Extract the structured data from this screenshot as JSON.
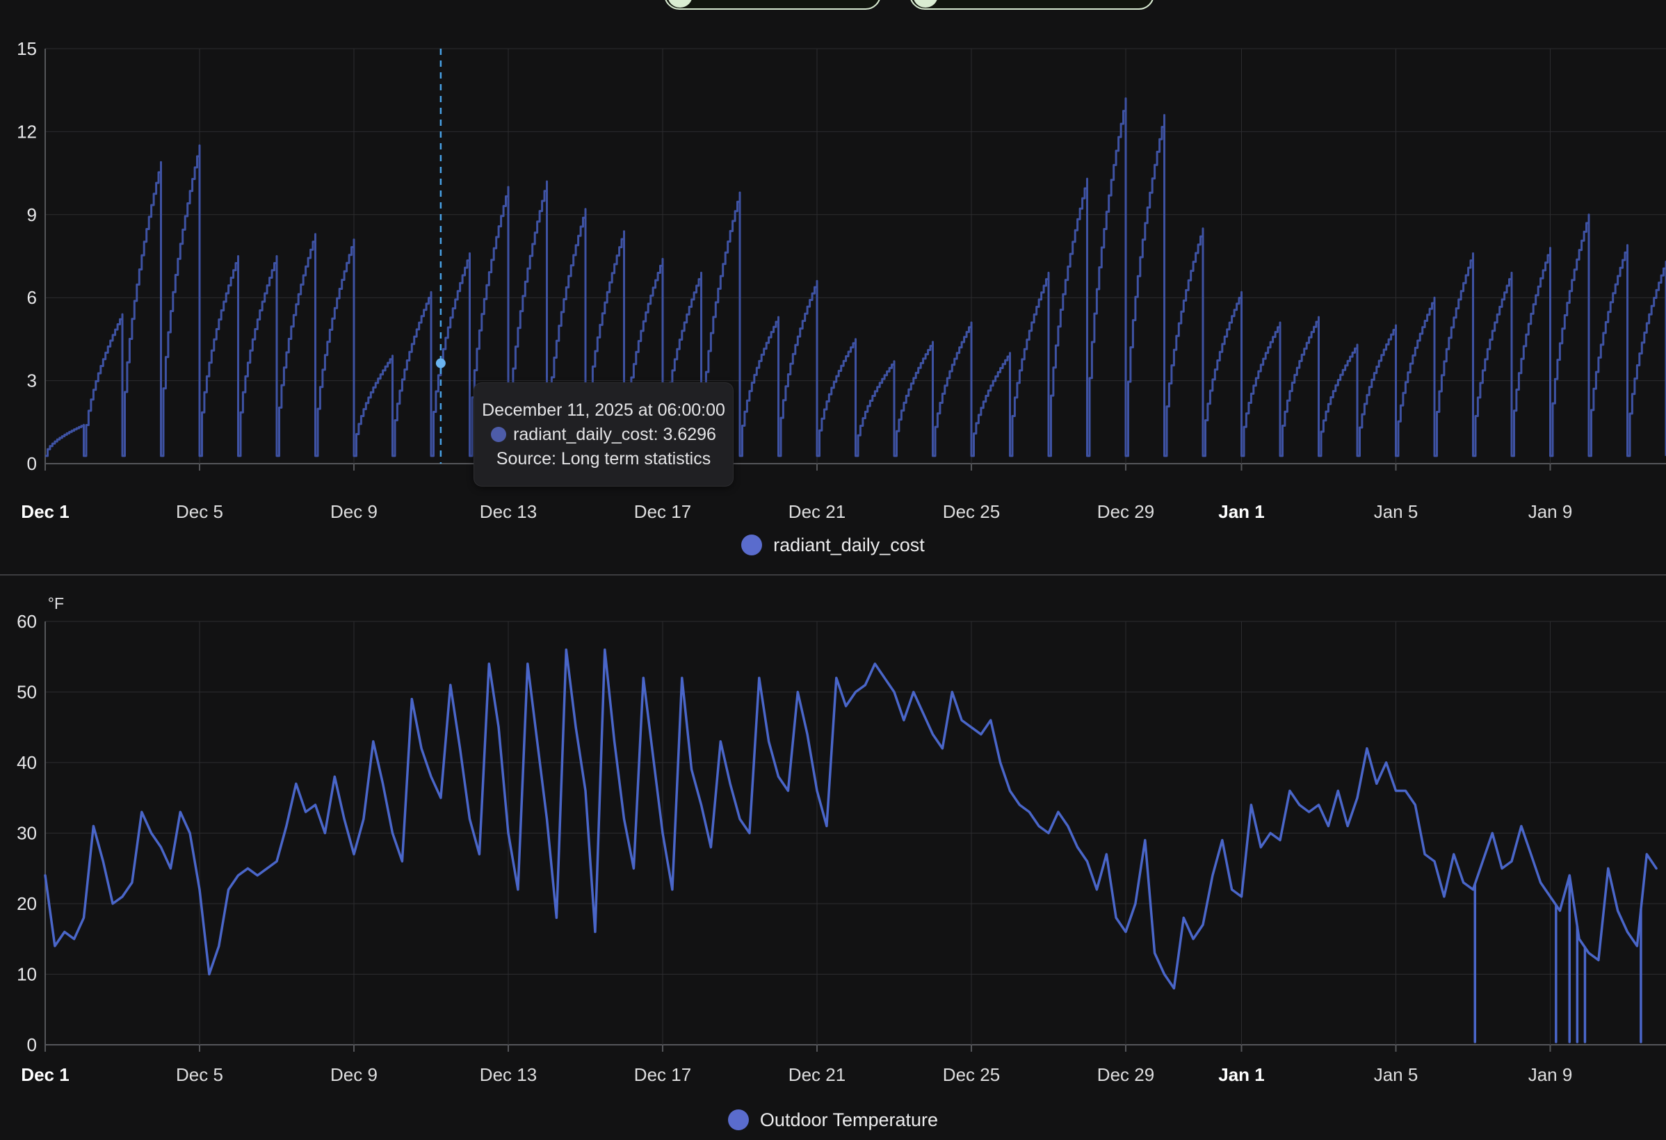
{
  "accent_green": "#d9ecd2",
  "tooltip": {
    "title": "December 11, 2025 at 06:00:00",
    "value_line": "radiant_daily_cost: 3.6296",
    "source_line": "Source: Long term statistics",
    "dot_color": "#4d5ca8"
  },
  "legend1": {
    "label": "radiant_daily_cost",
    "dot_color": "#5a6ccd"
  },
  "legend2": {
    "label": "Outdoor Temperature",
    "dot_color": "#5a6ccd"
  },
  "chart_data": [
    {
      "type": "line",
      "name": "radiant_daily_cost",
      "style": "daily sawtooth staircase, value accumulates each day then resets to ~0 at midnight",
      "color": "#3e52a3",
      "grid_color": "#2c2c2f",
      "axis_color": "#55565a",
      "ylim": [
        0,
        15
      ],
      "y_ticks": [
        0,
        3,
        6,
        9,
        12,
        15
      ],
      "x_span_days": 42,
      "x_ticks": [
        {
          "label": "Dec 1",
          "day": 0,
          "bold": true
        },
        {
          "label": "Dec 5",
          "day": 4
        },
        {
          "label": "Dec 9",
          "day": 8
        },
        {
          "label": "Dec 13",
          "day": 12
        },
        {
          "label": "Dec 17",
          "day": 16
        },
        {
          "label": "Dec 21",
          "day": 20
        },
        {
          "label": "Dec 25",
          "day": 24
        },
        {
          "label": "Dec 29",
          "day": 28
        },
        {
          "label": "Jan 1",
          "day": 31,
          "bold": true
        },
        {
          "label": "Jan 5",
          "day": 35
        },
        {
          "label": "Jan 9",
          "day": 39
        }
      ],
      "daily_totals": [
        1.4,
        5.4,
        10.9,
        11.5,
        7.5,
        7.5,
        8.3,
        8.1,
        3.9,
        6.2,
        7.6,
        10.0,
        10.2,
        9.2,
        8.4,
        7.4,
        6.9,
        9.8,
        5.3,
        6.6,
        4.5,
        3.7,
        4.4,
        5.1,
        4.0,
        6.9,
        10.3,
        13.2,
        12.6,
        8.5,
        6.2,
        5.1,
        5.3,
        4.3,
        5.0,
        6.0,
        7.6,
        6.9,
        7.8,
        9.0,
        7.9,
        7.3
      ],
      "cursor": {
        "day": 10.25,
        "value": 3.6296,
        "color": "#4aa3e8",
        "dot_color": "#6ab3f0"
      }
    },
    {
      "type": "line",
      "name": "Outdoor Temperature",
      "unit": "°F",
      "color": "#4a66c9",
      "grid_color": "#2c2c2f",
      "axis_color": "#55565a",
      "ylim": [
        0,
        60
      ],
      "y_ticks": [
        0,
        10,
        20,
        30,
        40,
        50,
        60
      ],
      "x_span_days": 42,
      "x_ticks": [
        {
          "label": "Dec 1",
          "day": 0,
          "bold": true
        },
        {
          "label": "Dec 5",
          "day": 4
        },
        {
          "label": "Dec 9",
          "day": 8
        },
        {
          "label": "Dec 13",
          "day": 12
        },
        {
          "label": "Dec 17",
          "day": 16
        },
        {
          "label": "Dec 21",
          "day": 20
        },
        {
          "label": "Dec 25",
          "day": 24
        },
        {
          "label": "Dec 29",
          "day": 28
        },
        {
          "label": "Jan 1",
          "day": 31,
          "bold": true
        },
        {
          "label": "Jan 5",
          "day": 35
        },
        {
          "label": "Jan 9",
          "day": 39
        }
      ],
      "points_per_day": 4,
      "values": [
        24,
        14,
        16,
        15,
        18,
        31,
        26,
        20,
        21,
        23,
        33,
        30,
        28,
        25,
        33,
        30,
        22,
        10,
        14,
        22,
        24,
        25,
        24,
        25,
        26,
        31,
        37,
        33,
        34,
        30,
        38,
        32,
        27,
        32,
        43,
        37,
        30,
        26,
        49,
        42,
        38,
        35,
        51,
        42,
        32,
        27,
        54,
        45,
        30,
        22,
        54,
        43,
        32,
        18,
        56,
        45,
        36,
        16,
        56,
        43,
        32,
        25,
        52,
        41,
        30,
        22,
        52,
        39,
        34,
        28,
        43,
        37,
        32,
        30,
        52,
        43,
        38,
        36,
        50,
        44,
        36,
        31,
        52,
        48,
        50,
        51,
        54,
        52,
        50,
        46,
        50,
        47,
        44,
        42,
        50,
        46,
        45,
        44,
        46,
        40,
        36,
        34,
        33,
        31,
        30,
        33,
        31,
        28,
        26,
        22,
        27,
        18,
        16,
        20,
        29,
        13,
        10,
        8,
        18,
        15,
        17,
        24,
        29,
        22,
        21,
        34,
        28,
        30,
        29,
        36,
        34,
        33,
        34,
        31,
        36,
        31,
        35,
        42,
        37,
        40,
        36,
        36,
        34,
        27,
        26,
        21,
        27,
        23,
        22,
        26,
        30,
        25,
        26,
        31,
        27,
        23,
        21,
        19,
        24,
        15,
        13,
        12,
        25,
        19,
        16,
        14,
        27,
        25
      ],
      "dropout_days": [
        37.05,
        39.15,
        39.5,
        39.7,
        39.9,
        41.35
      ]
    }
  ]
}
